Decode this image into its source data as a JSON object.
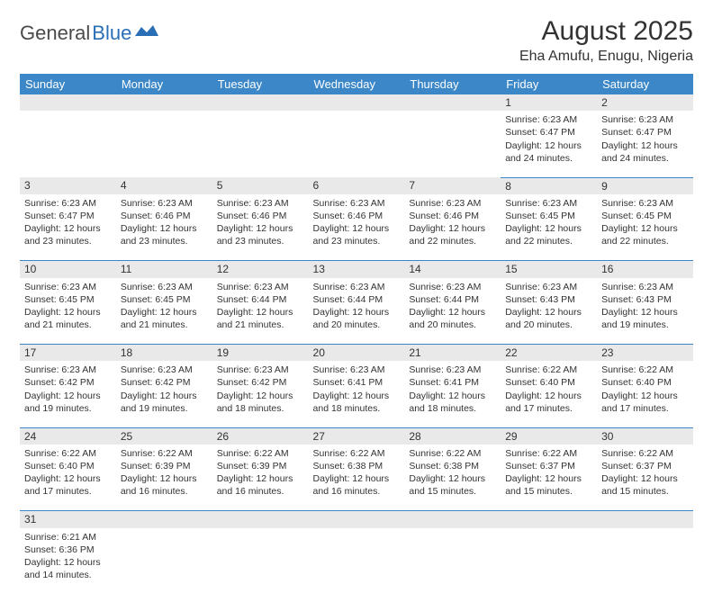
{
  "logo": {
    "text_general": "General",
    "text_blue": "Blue"
  },
  "title": "August 2025",
  "subtitle": "Eha Amufu, Enugu, Nigeria",
  "colors": {
    "header_bg": "#3b87c8",
    "header_fg": "#ffffff",
    "date_row_bg": "#e9e9e9",
    "divider": "#3b87c8",
    "text": "#333333",
    "logo_gray": "#4a4a4a",
    "logo_blue": "#2a6fb5"
  },
  "day_headers": [
    "Sunday",
    "Monday",
    "Tuesday",
    "Wednesday",
    "Thursday",
    "Friday",
    "Saturday"
  ],
  "weeks": [
    [
      null,
      null,
      null,
      null,
      null,
      {
        "num": "1",
        "sunrise": "6:23 AM",
        "sunset": "6:47 PM",
        "dl": "12 hours and 24 minutes."
      },
      {
        "num": "2",
        "sunrise": "6:23 AM",
        "sunset": "6:47 PM",
        "dl": "12 hours and 24 minutes."
      }
    ],
    [
      {
        "num": "3",
        "sunrise": "6:23 AM",
        "sunset": "6:47 PM",
        "dl": "12 hours and 23 minutes."
      },
      {
        "num": "4",
        "sunrise": "6:23 AM",
        "sunset": "6:46 PM",
        "dl": "12 hours and 23 minutes."
      },
      {
        "num": "5",
        "sunrise": "6:23 AM",
        "sunset": "6:46 PM",
        "dl": "12 hours and 23 minutes."
      },
      {
        "num": "6",
        "sunrise": "6:23 AM",
        "sunset": "6:46 PM",
        "dl": "12 hours and 23 minutes."
      },
      {
        "num": "7",
        "sunrise": "6:23 AM",
        "sunset": "6:46 PM",
        "dl": "12 hours and 22 minutes."
      },
      {
        "num": "8",
        "sunrise": "6:23 AM",
        "sunset": "6:45 PM",
        "dl": "12 hours and 22 minutes."
      },
      {
        "num": "9",
        "sunrise": "6:23 AM",
        "sunset": "6:45 PM",
        "dl": "12 hours and 22 minutes."
      }
    ],
    [
      {
        "num": "10",
        "sunrise": "6:23 AM",
        "sunset": "6:45 PM",
        "dl": "12 hours and 21 minutes."
      },
      {
        "num": "11",
        "sunrise": "6:23 AM",
        "sunset": "6:45 PM",
        "dl": "12 hours and 21 minutes."
      },
      {
        "num": "12",
        "sunrise": "6:23 AM",
        "sunset": "6:44 PM",
        "dl": "12 hours and 21 minutes."
      },
      {
        "num": "13",
        "sunrise": "6:23 AM",
        "sunset": "6:44 PM",
        "dl": "12 hours and 20 minutes."
      },
      {
        "num": "14",
        "sunrise": "6:23 AM",
        "sunset": "6:44 PM",
        "dl": "12 hours and 20 minutes."
      },
      {
        "num": "15",
        "sunrise": "6:23 AM",
        "sunset": "6:43 PM",
        "dl": "12 hours and 20 minutes."
      },
      {
        "num": "16",
        "sunrise": "6:23 AM",
        "sunset": "6:43 PM",
        "dl": "12 hours and 19 minutes."
      }
    ],
    [
      {
        "num": "17",
        "sunrise": "6:23 AM",
        "sunset": "6:42 PM",
        "dl": "12 hours and 19 minutes."
      },
      {
        "num": "18",
        "sunrise": "6:23 AM",
        "sunset": "6:42 PM",
        "dl": "12 hours and 19 minutes."
      },
      {
        "num": "19",
        "sunrise": "6:23 AM",
        "sunset": "6:42 PM",
        "dl": "12 hours and 18 minutes."
      },
      {
        "num": "20",
        "sunrise": "6:23 AM",
        "sunset": "6:41 PM",
        "dl": "12 hours and 18 minutes."
      },
      {
        "num": "21",
        "sunrise": "6:23 AM",
        "sunset": "6:41 PM",
        "dl": "12 hours and 18 minutes."
      },
      {
        "num": "22",
        "sunrise": "6:22 AM",
        "sunset": "6:40 PM",
        "dl": "12 hours and 17 minutes."
      },
      {
        "num": "23",
        "sunrise": "6:22 AM",
        "sunset": "6:40 PM",
        "dl": "12 hours and 17 minutes."
      }
    ],
    [
      {
        "num": "24",
        "sunrise": "6:22 AM",
        "sunset": "6:40 PM",
        "dl": "12 hours and 17 minutes."
      },
      {
        "num": "25",
        "sunrise": "6:22 AM",
        "sunset": "6:39 PM",
        "dl": "12 hours and 16 minutes."
      },
      {
        "num": "26",
        "sunrise": "6:22 AM",
        "sunset": "6:39 PM",
        "dl": "12 hours and 16 minutes."
      },
      {
        "num": "27",
        "sunrise": "6:22 AM",
        "sunset": "6:38 PM",
        "dl": "12 hours and 16 minutes."
      },
      {
        "num": "28",
        "sunrise": "6:22 AM",
        "sunset": "6:38 PM",
        "dl": "12 hours and 15 minutes."
      },
      {
        "num": "29",
        "sunrise": "6:22 AM",
        "sunset": "6:37 PM",
        "dl": "12 hours and 15 minutes."
      },
      {
        "num": "30",
        "sunrise": "6:22 AM",
        "sunset": "6:37 PM",
        "dl": "12 hours and 15 minutes."
      }
    ],
    [
      {
        "num": "31",
        "sunrise": "6:21 AM",
        "sunset": "6:36 PM",
        "dl": "12 hours and 14 minutes."
      },
      null,
      null,
      null,
      null,
      null,
      null
    ]
  ],
  "labels": {
    "sunrise": "Sunrise:",
    "sunset": "Sunset:",
    "daylight": "Daylight:"
  }
}
